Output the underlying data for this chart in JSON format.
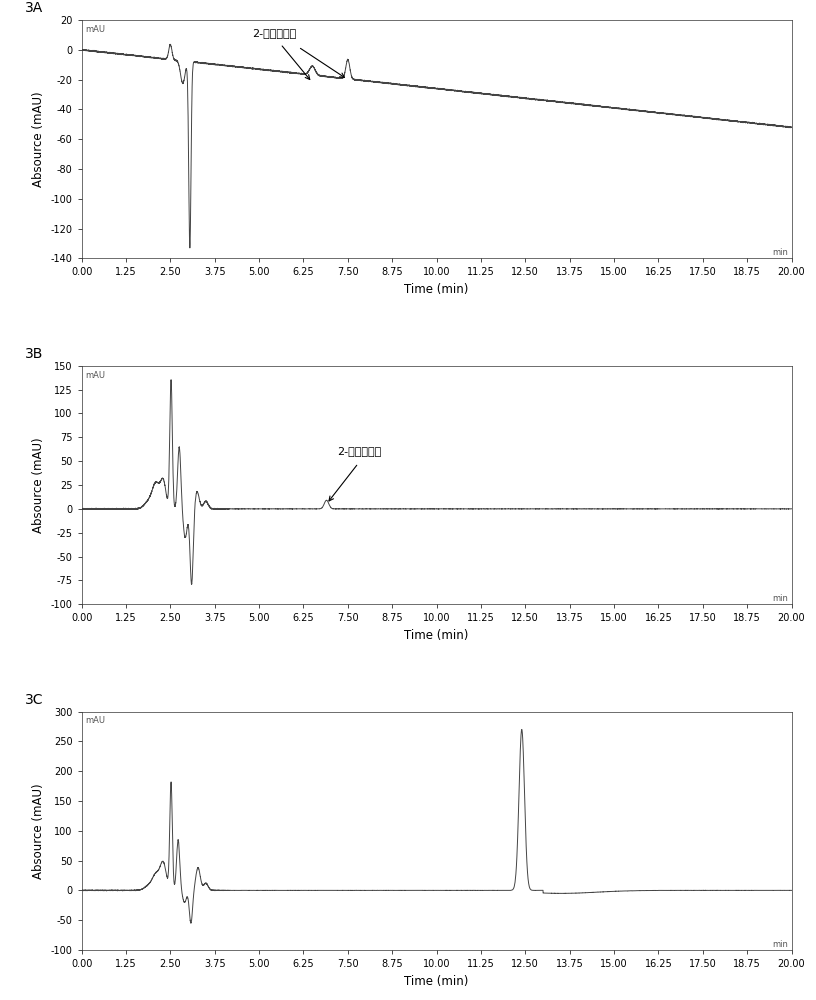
{
  "panel_labels": [
    "3A",
    "3B",
    "3C"
  ],
  "xlabel": "Time (min)",
  "ylabel": "Absource (mAU)",
  "xlim": [
    0,
    20
  ],
  "xticks": [
    0.0,
    1.25,
    2.5,
    3.75,
    5.0,
    6.25,
    7.5,
    8.75,
    10.0,
    11.25,
    12.5,
    13.75,
    15.0,
    16.25,
    17.5,
    18.75,
    20.0
  ],
  "xtick_labels": [
    "0.00",
    "1.25",
    "2.50",
    "3.75",
    "5.00",
    "6.25",
    "7.50",
    "8.75",
    "10.00",
    "11.25",
    "12.50",
    "13.75",
    "15.00",
    "16.25",
    "17.50",
    "18.75",
    "20.00"
  ],
  "panel_A": {
    "ylim": [
      -140,
      20
    ],
    "yticks": [
      20,
      0,
      -20,
      -40,
      -60,
      -80,
      -100,
      -120,
      -140
    ],
    "annotation_text": "2-甲基柠檬酸"
  },
  "panel_B": {
    "ylim": [
      -100,
      150
    ],
    "yticks": [
      -100,
      -75,
      -50,
      -25,
      0,
      25,
      50,
      75,
      100,
      125,
      150
    ],
    "annotation_text": "2-甲基柠檬酸"
  },
  "panel_C": {
    "ylim": [
      -100,
      300
    ],
    "yticks": [
      -100,
      -50,
      0,
      50,
      100,
      150,
      200,
      250,
      300
    ]
  },
  "line_color": "#444444",
  "line_width": 0.7,
  "background_color": "#ffffff",
  "mau_label": "mAU",
  "min_label": "min"
}
